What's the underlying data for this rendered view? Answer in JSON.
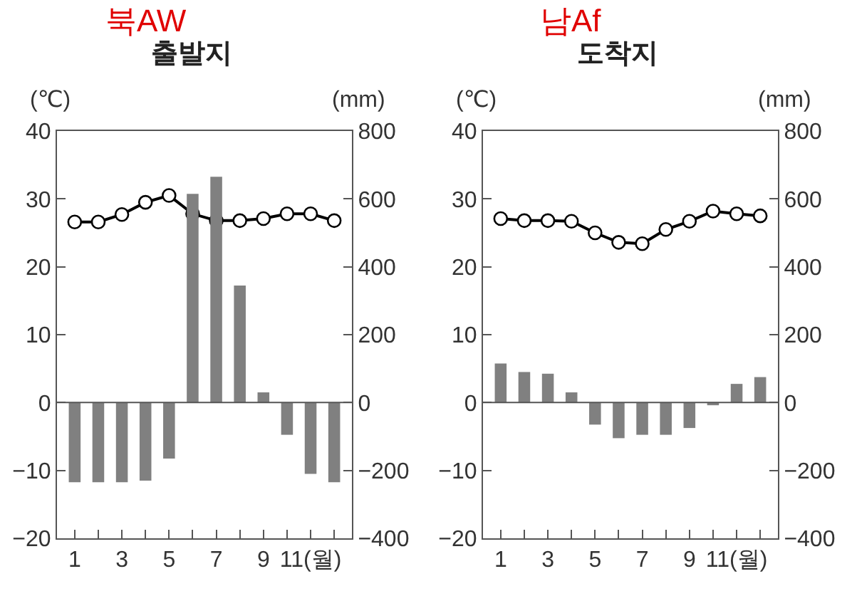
{
  "chart_data": [
    {
      "type": "bar",
      "title": "출발지",
      "annotations": [
        "북AW"
      ],
      "ylabel": "(℃)",
      "y2label": "(mm)",
      "x": [
        1,
        2,
        3,
        4,
        5,
        6,
        7,
        8,
        9,
        10,
        11,
        12
      ],
      "xlim": [
        0.25,
        12.75
      ],
      "xticks": [
        1,
        {
          "value": 2,
          "label": null
        },
        3,
        {
          "value": 4,
          "label": null
        },
        5,
        {
          "value": 6,
          "label": null
        },
        7,
        {
          "value": 8,
          "label": null
        },
        9,
        {
          "value": 10,
          "label": null
        },
        {
          "value": 11,
          "label": "11(월)"
        },
        {
          "value": 12,
          "label": null
        }
      ],
      "ylim": [
        -20,
        40
      ],
      "yticks": [
        -20,
        -10,
        0,
        10,
        20,
        30,
        40
      ],
      "y2lim": [
        -400,
        800
      ],
      "y2ticks": [
        -400,
        -200,
        0,
        200,
        400,
        600,
        800
      ],
      "grid": false,
      "marker": "circle",
      "ref_lines": [
        {
          "axis": "y",
          "value": 0,
          "color": "#555555"
        }
      ],
      "series": [
        {
          "type": "bar",
          "axis": "y2",
          "color": "#808080",
          "values": [
            -235,
            -235,
            -235,
            -230,
            -165,
            615,
            665,
            345,
            30,
            -95,
            -210,
            -235
          ]
        },
        {
          "type": "line",
          "color": "#000000",
          "values": [
            26.6,
            26.6,
            27.7,
            29.5,
            30.5,
            27.8,
            26.8,
            26.8,
            27.1,
            27.8,
            27.8,
            26.8
          ]
        }
      ]
    },
    {
      "type": "bar",
      "title": "도착지",
      "annotations": [
        "남Af"
      ],
      "ylabel": "(℃)",
      "y2label": "(mm)",
      "x": [
        1,
        2,
        3,
        4,
        5,
        6,
        7,
        8,
        9,
        10,
        11,
        12
      ],
      "xlim": [
        0.25,
        12.75
      ],
      "xticks": [
        1,
        {
          "value": 2,
          "label": null
        },
        3,
        {
          "value": 4,
          "label": null
        },
        5,
        {
          "value": 6,
          "label": null
        },
        7,
        {
          "value": 8,
          "label": null
        },
        9,
        {
          "value": 10,
          "label": null
        },
        {
          "value": 11,
          "label": "11(월)"
        },
        {
          "value": 12,
          "label": null
        }
      ],
      "ylim": [
        -20,
        40
      ],
      "yticks": [
        -20,
        -10,
        0,
        10,
        20,
        30,
        40
      ],
      "y2lim": [
        -400,
        800
      ],
      "y2ticks": [
        -400,
        -200,
        0,
        200,
        400,
        600,
        800
      ],
      "grid": false,
      "marker": "circle",
      "ref_lines": [
        {
          "axis": "y",
          "value": 0,
          "color": "#555555"
        }
      ],
      "series": [
        {
          "type": "bar",
          "axis": "y2",
          "color": "#808080",
          "values": [
            115,
            90,
            85,
            30,
            -65,
            -105,
            -95,
            -95,
            -75,
            -8,
            55,
            75
          ]
        },
        {
          "type": "line",
          "color": "#000000",
          "values": [
            27.1,
            26.8,
            26.8,
            26.7,
            25.0,
            23.6,
            23.4,
            25.5,
            26.7,
            28.2,
            27.8,
            27.5
          ]
        }
      ]
    }
  ]
}
